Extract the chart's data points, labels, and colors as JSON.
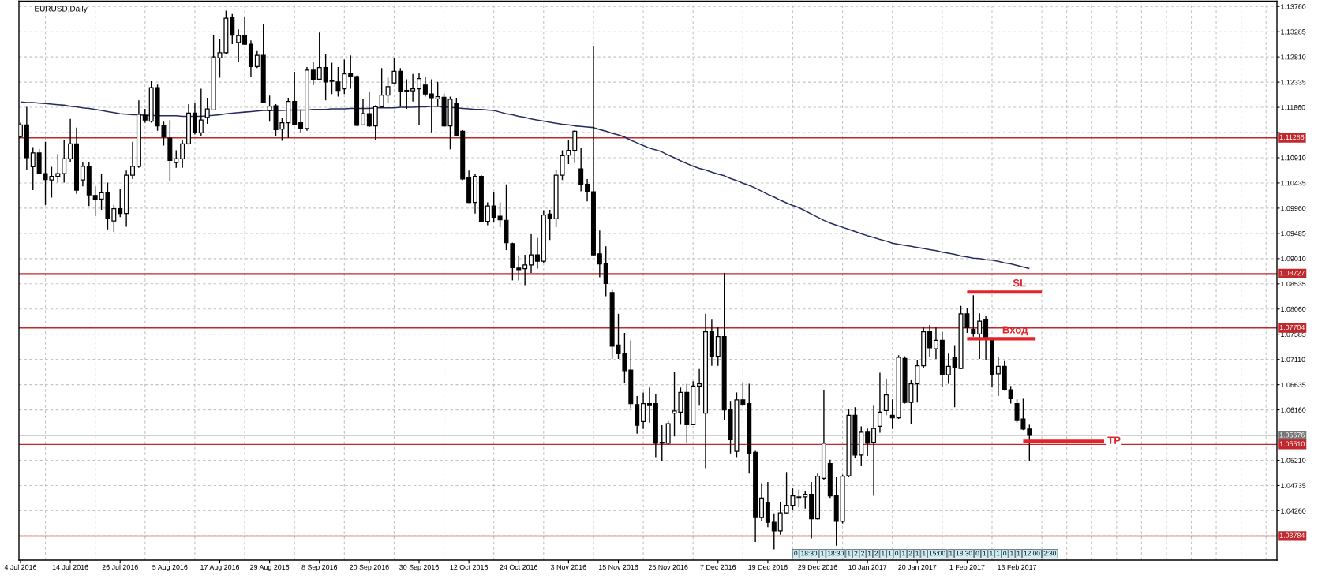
{
  "chart_data": {
    "type": "candlestick",
    "title": "EURUSD,Daily",
    "color": "#000000",
    "categories": [
      "4 Jul 2016",
      null,
      null,
      null,
      null,
      null,
      null,
      null,
      "14 Jul 2016",
      null,
      null,
      null,
      null,
      null,
      null,
      null,
      "26 Jul 2016",
      null,
      null,
      null,
      null,
      null,
      null,
      null,
      "5 Aug 2016",
      null,
      null,
      null,
      null,
      null,
      null,
      null,
      "17 Aug 2016",
      null,
      null,
      null,
      null,
      null,
      null,
      null,
      "29 Aug 2016",
      null,
      null,
      null,
      null,
      null,
      null,
      null,
      "8 Sep 2016",
      null,
      null,
      null,
      null,
      null,
      null,
      null,
      "20 Sep 2016",
      null,
      null,
      null,
      null,
      null,
      null,
      null,
      "30 Sep 2016",
      null,
      null,
      null,
      null,
      null,
      null,
      null,
      "12 Oct 2016",
      null,
      null,
      null,
      null,
      null,
      null,
      null,
      "24 Oct 2016",
      null,
      null,
      null,
      null,
      null,
      null,
      null,
      "3 Nov 2016",
      null,
      null,
      null,
      null,
      null,
      null,
      null,
      "15 Nov 2016",
      null,
      null,
      null,
      null,
      null,
      null,
      null,
      "25 Nov 2016",
      null,
      null,
      null,
      null,
      null,
      null,
      null,
      "7 Dec 2016",
      null,
      null,
      null,
      null,
      null,
      null,
      null,
      "19 Dec 2016",
      null,
      null,
      null,
      null,
      null,
      null,
      null,
      "29 Dec 2016",
      null,
      null,
      null,
      null,
      null,
      null,
      null,
      "10 Jan 2017",
      null,
      null,
      null,
      null,
      null,
      null,
      null,
      "20 Jan 2017",
      null,
      null,
      null,
      null,
      null,
      null,
      null,
      "1 Feb 2017",
      null,
      null,
      null,
      null,
      null,
      null,
      null,
      "13 Feb 2017",
      null,
      null,
      null,
      null,
      null,
      null,
      null,
      null,
      null,
      null,
      null,
      null,
      null,
      null,
      null,
      null,
      null,
      null,
      null,
      null,
      null,
      null,
      null,
      null,
      null,
      null,
      null,
      null,
      null,
      null,
      null,
      null,
      null,
      null,
      null,
      null,
      null,
      null,
      null,
      null,
      null
    ],
    "ohlc": [
      [
        1.1131,
        1.1157,
        1.1128,
        1.1153
      ],
      [
        1.1153,
        1.1187,
        1.1068,
        1.1091
      ],
      [
        1.1074,
        1.1111,
        1.103,
        1.11
      ],
      [
        1.11,
        1.1107,
        1.106,
        1.1061
      ],
      [
        1.1061,
        1.1121,
        1.1002,
        1.105
      ],
      [
        1.1049,
        1.1074,
        1.1016,
        1.1056
      ],
      [
        1.1056,
        1.1098,
        1.1044,
        1.1061
      ],
      [
        1.1061,
        1.1125,
        1.1044,
        1.1089
      ],
      [
        1.1089,
        1.1164,
        1.1082,
        1.1117
      ],
      [
        1.1117,
        1.1148,
        1.1023,
        1.103
      ],
      [
        1.1049,
        1.1082,
        1.1037,
        1.1075
      ],
      [
        1.1075,
        1.1082,
        1.1,
        1.1021
      ],
      [
        1.102,
        1.1037,
        1.0981,
        1.1013
      ],
      [
        1.1013,
        1.106,
        1.0993,
        1.1025
      ],
      [
        1.1025,
        1.1044,
        1.0956,
        1.0976
      ],
      [
        1.0972,
        1.1002,
        1.0951,
        1.0995
      ],
      [
        1.0995,
        1.1032,
        1.0979,
        1.0986
      ],
      [
        1.0986,
        1.1067,
        1.0961,
        1.1058
      ],
      [
        1.1058,
        1.1121,
        1.1051,
        1.1075
      ],
      [
        1.1075,
        1.1199,
        1.1072,
        1.1173
      ],
      [
        1.1171,
        1.1183,
        1.1157,
        1.1162
      ],
      [
        1.116,
        1.1235,
        1.1157,
        1.1223
      ],
      [
        1.1223,
        1.1229,
        1.1142,
        1.1151
      ],
      [
        1.1151,
        1.1159,
        1.1114,
        1.113
      ],
      [
        1.1128,
        1.1162,
        1.1046,
        1.1086
      ],
      [
        1.1082,
        1.1105,
        1.1072,
        1.1089
      ],
      [
        1.1089,
        1.1124,
        1.1072,
        1.1117
      ],
      [
        1.1117,
        1.1192,
        1.1116,
        1.1175
      ],
      [
        1.1175,
        1.1194,
        1.1135,
        1.1138
      ],
      [
        1.1138,
        1.1221,
        1.1132,
        1.1162
      ],
      [
        1.1167,
        1.1204,
        1.1155,
        1.1183
      ],
      [
        1.1181,
        1.1322,
        1.118,
        1.1281
      ],
      [
        1.1279,
        1.1315,
        1.1242,
        1.1289
      ],
      [
        1.1289,
        1.1368,
        1.1286,
        1.1354
      ],
      [
        1.1355,
        1.1362,
        1.1305,
        1.1322
      ],
      [
        1.1308,
        1.1333,
        1.1272,
        1.1321
      ],
      [
        1.1321,
        1.1357,
        1.1304,
        1.1305
      ],
      [
        1.1305,
        1.1312,
        1.1244,
        1.1263
      ],
      [
        1.1263,
        1.1292,
        1.126,
        1.1284
      ],
      [
        1.1284,
        1.1342,
        1.1194,
        1.1195
      ],
      [
        1.118,
        1.1208,
        1.1159,
        1.1188
      ],
      [
        1.1189,
        1.1192,
        1.1131,
        1.1144
      ],
      [
        1.1145,
        1.1166,
        1.1123,
        1.1157
      ],
      [
        1.1157,
        1.1204,
        1.1128,
        1.1197
      ],
      [
        1.1197,
        1.1253,
        1.1152,
        1.1154
      ],
      [
        1.1157,
        1.1181,
        1.1139,
        1.1146
      ],
      [
        1.1146,
        1.1262,
        1.1142,
        1.1256
      ],
      [
        1.1256,
        1.1272,
        1.1228,
        1.1239
      ],
      [
        1.1239,
        1.1327,
        1.1237,
        1.1261
      ],
      [
        1.1261,
        1.1286,
        1.1199,
        1.1234
      ],
      [
        1.1237,
        1.127,
        1.1211,
        1.1235
      ],
      [
        1.1234,
        1.1262,
        1.1206,
        1.1218
      ],
      [
        1.1221,
        1.1276,
        1.1211,
        1.1249
      ],
      [
        1.1249,
        1.1284,
        1.1221,
        1.1244
      ],
      [
        1.1244,
        1.1246,
        1.1151,
        1.1152
      ],
      [
        1.1153,
        1.1201,
        1.1152,
        1.1174
      ],
      [
        1.1174,
        1.1215,
        1.1149,
        1.1151
      ],
      [
        1.1151,
        1.119,
        1.1124,
        1.1187
      ],
      [
        1.1187,
        1.126,
        1.1185,
        1.1209
      ],
      [
        1.1209,
        1.1242,
        1.1194,
        1.1225
      ],
      [
        1.1232,
        1.1279,
        1.123,
        1.1254
      ],
      [
        1.1254,
        1.126,
        1.1187,
        1.1216
      ],
      [
        1.1218,
        1.1239,
        1.1183,
        1.1216
      ],
      [
        1.1217,
        1.1249,
        1.1197,
        1.1221
      ],
      [
        1.1221,
        1.1251,
        1.1153,
        1.124
      ],
      [
        1.1228,
        1.1244,
        1.1206,
        1.1211
      ],
      [
        1.1211,
        1.1239,
        1.1139,
        1.1204
      ],
      [
        1.1202,
        1.1234,
        1.1187,
        1.1206
      ],
      [
        1.1205,
        1.1212,
        1.1149,
        1.1151
      ],
      [
        1.1151,
        1.1206,
        1.1107,
        1.1201
      ],
      [
        1.1194,
        1.1204,
        1.1131,
        1.1132
      ],
      [
        1.1141,
        1.1143,
        1.1049,
        1.1051
      ],
      [
        1.1054,
        1.1067,
        1.1006,
        1.1007
      ],
      [
        1.1007,
        1.106,
        1.0986,
        1.1056
      ],
      [
        1.1056,
        1.1058,
        1.0969,
        1.0971
      ],
      [
        1.0971,
        1.1007,
        1.0964,
        1.1
      ],
      [
        1.1,
        1.1027,
        1.0969,
        1.0979
      ],
      [
        1.0981,
        1.1007,
        1.096,
        1.0974
      ],
      [
        1.0973,
        1.1041,
        1.0917,
        1.0931
      ],
      [
        1.0929,
        1.0931,
        1.086,
        1.0884
      ],
      [
        1.0883,
        1.0907,
        1.086,
        1.088
      ],
      [
        1.0882,
        1.0908,
        1.0851,
        1.0889
      ],
      [
        1.0889,
        1.0947,
        1.0874,
        1.0908
      ],
      [
        1.0908,
        1.094,
        1.0882,
        1.0896
      ],
      [
        1.0896,
        1.0992,
        1.0893,
        1.0983
      ],
      [
        1.0985,
        1.0993,
        1.0936,
        1.0976
      ],
      [
        1.0976,
        1.1068,
        1.096,
        1.1058
      ],
      [
        1.1058,
        1.1105,
        1.1049,
        1.1095
      ],
      [
        1.1096,
        1.1124,
        1.1079,
        1.1105
      ],
      [
        1.1105,
        1.1143,
        1.1081,
        1.1141
      ],
      [
        1.107,
        1.111,
        1.1028,
        1.1041
      ],
      [
        1.1041,
        1.1051,
        1.1009,
        1.1027
      ],
      [
        1.1027,
        1.1302,
        1.0907,
        1.0908
      ],
      [
        1.091,
        1.0954,
        1.0866,
        1.0891
      ],
      [
        1.0891,
        1.0924,
        1.083,
        1.0854
      ],
      [
        1.0837,
        1.0842,
        1.0712,
        1.0736
      ],
      [
        1.0738,
        1.0797,
        1.0712,
        1.0722
      ],
      [
        1.0722,
        1.0761,
        1.0666,
        1.069
      ],
      [
        1.0691,
        1.0747,
        1.0619,
        1.0628
      ],
      [
        1.0626,
        1.0642,
        1.0571,
        1.0587
      ],
      [
        1.0594,
        1.0649,
        1.058,
        1.0628
      ],
      [
        1.0628,
        1.0658,
        1.0592,
        1.0624
      ],
      [
        1.0628,
        1.0645,
        1.0527,
        1.0553
      ],
      [
        1.0555,
        1.0587,
        1.052,
        1.0553
      ],
      [
        1.0553,
        1.0595,
        1.055,
        1.059
      ],
      [
        1.061,
        1.0687,
        1.0566,
        1.0614
      ],
      [
        1.0612,
        1.0658,
        1.0588,
        1.0649
      ],
      [
        1.0649,
        1.0665,
        1.0553,
        1.0588
      ],
      [
        1.0588,
        1.067,
        1.0587,
        1.0661
      ],
      [
        1.0661,
        1.0693,
        1.0624,
        1.0665
      ],
      [
        1.061,
        1.0797,
        1.0506,
        1.0763
      ],
      [
        1.0763,
        1.0786,
        1.0699,
        1.0717
      ],
      [
        1.0717,
        1.0771,
        1.0699,
        1.0754
      ],
      [
        1.0754,
        1.0874,
        1.0596,
        1.0616
      ],
      [
        1.0616,
        1.0633,
        1.0534,
        1.056
      ],
      [
        1.0538,
        1.0649,
        1.0527,
        1.0635
      ],
      [
        1.0635,
        1.0668,
        1.0623,
        1.0626
      ],
      [
        1.0628,
        1.0665,
        1.0496,
        1.0534
      ],
      [
        1.0536,
        1.0539,
        1.0367,
        1.0413
      ],
      [
        1.0413,
        1.0478,
        1.0407,
        1.045
      ],
      [
        1.0441,
        1.048,
        1.0395,
        1.0404
      ],
      [
        1.0404,
        1.0421,
        1.0353,
        1.0388
      ],
      [
        1.0388,
        1.0442,
        1.0381,
        1.0422
      ],
      [
        1.0422,
        1.0499,
        1.0421,
        1.0436
      ],
      [
        1.0436,
        1.0468,
        1.0427,
        1.0454
      ],
      [
        1.0452,
        1.0466,
        1.0432,
        1.0451
      ],
      [
        1.0452,
        1.0463,
        1.043,
        1.0457
      ],
      [
        1.0457,
        1.048,
        1.0374,
        1.0411
      ],
      [
        1.0411,
        1.0496,
        1.0409,
        1.0491
      ],
      [
        1.0487,
        1.0654,
        1.0484,
        1.0553
      ],
      [
        1.0515,
        1.0522,
        1.045,
        1.0454
      ],
      [
        1.0454,
        1.0489,
        1.036,
        1.0406
      ],
      [
        1.0406,
        1.0494,
        1.0402,
        1.0491
      ],
      [
        1.0492,
        1.0617,
        1.0489,
        1.0606
      ],
      [
        1.0606,
        1.0621,
        1.0526,
        1.0531
      ],
      [
        1.0531,
        1.0585,
        1.051,
        1.0574
      ],
      [
        1.0574,
        1.0581,
        1.0529,
        1.0553
      ],
      [
        1.0555,
        1.0624,
        1.0454,
        1.0581
      ],
      [
        1.0585,
        1.0686,
        1.0573,
        1.0612
      ],
      [
        1.0615,
        1.0675,
        1.0606,
        1.0644
      ],
      [
        1.0606,
        1.0636,
        1.058,
        1.0601
      ],
      [
        1.0601,
        1.0719,
        1.0599,
        1.0715
      ],
      [
        1.0713,
        1.0717,
        1.0628,
        1.063
      ],
      [
        1.063,
        1.0672,
        1.059,
        1.0665
      ],
      [
        1.0665,
        1.071,
        1.063,
        1.0699
      ],
      [
        1.0699,
        1.0771,
        1.0694,
        1.0763
      ],
      [
        1.0763,
        1.0776,
        1.0715,
        1.0733
      ],
      [
        1.0731,
        1.0771,
        1.0712,
        1.0747
      ],
      [
        1.0747,
        1.0763,
        1.0659,
        1.0682
      ],
      [
        1.0682,
        1.0722,
        1.0665,
        1.0698
      ],
      [
        1.0715,
        1.0738,
        1.0621,
        1.0696
      ],
      [
        1.0694,
        1.0812,
        1.0693,
        1.0797
      ],
      [
        1.0797,
        1.0807,
        1.0761,
        1.0771
      ],
      [
        1.0768,
        1.0832,
        1.0754,
        1.0759
      ],
      [
        1.0759,
        1.0798,
        1.0712,
        1.0783
      ],
      [
        1.0786,
        1.0793,
        1.071,
        1.0752
      ],
      [
        1.0747,
        1.0749,
        1.0658,
        1.0682
      ],
      [
        1.0684,
        1.0715,
        1.0642,
        1.0698
      ],
      [
        1.0698,
        1.0708,
        1.0652,
        1.0654
      ],
      [
        1.0654,
        1.0661,
        1.0628,
        1.0637
      ],
      [
        1.0628,
        1.0636,
        1.0592,
        1.0596
      ],
      [
        1.0599,
        1.0637,
        1.0578,
        1.058
      ],
      [
        1.058,
        1.0588,
        1.052,
        1.0568
      ],
      null,
      null,
      null,
      null,
      null,
      null,
      null,
      null,
      null,
      null,
      null,
      null,
      null,
      null,
      null,
      null,
      null,
      null,
      null,
      null,
      null,
      null,
      null,
      null,
      null,
      null,
      null,
      null,
      null,
      null,
      null,
      null,
      null,
      null,
      null,
      null,
      null,
      null,
      null
    ],
    "series": [
      {
        "type": "line",
        "color": "#262b5e",
        "values": [
          1.1196,
          1.1195,
          1.1195,
          1.1194,
          1.1193,
          1.1192,
          1.1191,
          1.119,
          1.1188,
          1.1187,
          1.1185,
          1.1184,
          1.1182,
          1.118,
          1.1178,
          1.1176,
          1.1174,
          1.1173,
          1.1172,
          1.1172,
          1.1171,
          1.1171,
          1.117,
          1.117,
          1.117,
          1.117,
          1.1169,
          1.1169,
          1.1169,
          1.1169,
          1.117,
          1.1171,
          1.1172,
          1.1174,
          1.1175,
          1.1176,
          1.1177,
          1.1178,
          1.1179,
          1.118,
          1.118,
          1.118,
          1.118,
          1.1181,
          1.1181,
          1.1181,
          1.1181,
          1.1182,
          1.1182,
          1.1182,
          1.1183,
          1.1183,
          1.1183,
          1.1184,
          1.1184,
          1.1184,
          1.1184,
          1.1185,
          1.1185,
          1.1185,
          1.1185,
          1.1186,
          1.1186,
          1.1186,
          1.1187,
          1.1187,
          1.1188,
          1.1188,
          1.1187,
          1.1186,
          1.1185,
          1.1184,
          1.1183,
          1.1182,
          1.1182,
          1.1181,
          1.118,
          1.1177,
          1.1174,
          1.1172,
          1.1169,
          1.1167,
          1.1164,
          1.1162,
          1.116,
          1.1158,
          1.1156,
          1.1154,
          1.1153,
          1.1151,
          1.115,
          1.1149,
          1.1148,
          1.1144,
          1.1141,
          1.1137,
          1.1134,
          1.113,
          1.1124,
          1.1119,
          1.1114,
          1.1109,
          1.1106,
          1.1102,
          1.1096,
          1.1091,
          1.1085,
          1.108,
          1.1075,
          1.1071,
          1.1068,
          1.1064,
          1.106,
          1.1057,
          1.1052,
          1.1048,
          1.1043,
          1.1039,
          1.1034,
          1.1028,
          1.1022,
          1.1017,
          1.1011,
          1.1006,
          1.1001,
          1.0997,
          1.0991,
          1.0985,
          1.0979,
          1.0973,
          1.0968,
          1.0964,
          1.096,
          1.0956,
          1.0952,
          1.0948,
          1.0944,
          1.0941,
          1.0937,
          1.0934,
          1.093,
          1.0928,
          1.0926,
          1.0924,
          1.0922,
          1.092,
          1.0918,
          1.0916,
          1.0913,
          1.0911,
          1.0909,
          1.0906,
          1.0904,
          1.0902,
          1.0901,
          1.0899,
          1.0898,
          1.0896,
          1.0893,
          1.0891,
          1.0888,
          1.0885,
          1.0882,
          null,
          null,
          null,
          null,
          null,
          null,
          null,
          null,
          null,
          null,
          null,
          null,
          null,
          null,
          null,
          null,
          null,
          null,
          null,
          null,
          null,
          null,
          null,
          null,
          null,
          null,
          null,
          null,
          null,
          null,
          null,
          null,
          null,
          null,
          null,
          null,
          null,
          null,
          null
        ]
      },
      {
        "type": "line",
        "name": "SL",
        "color": "#e3242b",
        "values": [
          null,
          null,
          null,
          null,
          null,
          null,
          null,
          null,
          null,
          null,
          null,
          null,
          null,
          null,
          null,
          null,
          null,
          null,
          null,
          null,
          null,
          null,
          null,
          null,
          null,
          null,
          null,
          null,
          null,
          null,
          null,
          null,
          null,
          null,
          null,
          null,
          null,
          null,
          null,
          null,
          null,
          null,
          null,
          null,
          null,
          null,
          null,
          null,
          null,
          null,
          null,
          null,
          null,
          null,
          null,
          null,
          null,
          null,
          null,
          null,
          null,
          null,
          null,
          null,
          null,
          null,
          null,
          null,
          null,
          null,
          null,
          null,
          null,
          null,
          null,
          null,
          null,
          null,
          null,
          null,
          null,
          null,
          null,
          null,
          null,
          null,
          null,
          null,
          null,
          null,
          null,
          null,
          null,
          null,
          null,
          null,
          null,
          null,
          null,
          null,
          null,
          null,
          null,
          null,
          null,
          null,
          null,
          null,
          null,
          null,
          null,
          null,
          null,
          null,
          null,
          null,
          null,
          null,
          null,
          null,
          null,
          null,
          null,
          null,
          null,
          null,
          null,
          null,
          null,
          null,
          null,
          null,
          null,
          null,
          null,
          null,
          null,
          null,
          null,
          null,
          null,
          null,
          null,
          null,
          null,
          null,
          null,
          null,
          null,
          null,
          null,
          null,
          1.0838,
          1.0838,
          1.0838,
          1.0838,
          1.0838,
          1.0838,
          1.0838,
          1.0838,
          1.0838,
          1.0838,
          1.0838,
          1.0838,
          1.0838,
          null,
          null,
          null,
          null,
          null,
          null,
          null,
          null,
          null,
          null,
          null,
          null,
          null,
          null,
          null,
          null,
          null,
          null,
          null,
          null,
          null,
          null,
          null,
          null,
          null,
          null,
          null,
          null,
          null,
          null,
          null,
          null,
          null,
          null,
          null,
          null,
          null
        ]
      },
      {
        "type": "line",
        "name": "Вход",
        "color": "#e3242b",
        "values": [
          null,
          null,
          null,
          null,
          null,
          null,
          null,
          null,
          null,
          null,
          null,
          null,
          null,
          null,
          null,
          null,
          null,
          null,
          null,
          null,
          null,
          null,
          null,
          null,
          null,
          null,
          null,
          null,
          null,
          null,
          null,
          null,
          null,
          null,
          null,
          null,
          null,
          null,
          null,
          null,
          null,
          null,
          null,
          null,
          null,
          null,
          null,
          null,
          null,
          null,
          null,
          null,
          null,
          null,
          null,
          null,
          null,
          null,
          null,
          null,
          null,
          null,
          null,
          null,
          null,
          null,
          null,
          null,
          null,
          null,
          null,
          null,
          null,
          null,
          null,
          null,
          null,
          null,
          null,
          null,
          null,
          null,
          null,
          null,
          null,
          null,
          null,
          null,
          null,
          null,
          null,
          null,
          null,
          null,
          null,
          null,
          null,
          null,
          null,
          null,
          null,
          null,
          null,
          null,
          null,
          null,
          null,
          null,
          null,
          null,
          null,
          null,
          null,
          null,
          null,
          null,
          null,
          null,
          null,
          null,
          null,
          null,
          null,
          null,
          null,
          null,
          null,
          null,
          null,
          null,
          null,
          null,
          null,
          null,
          null,
          null,
          null,
          null,
          null,
          null,
          null,
          null,
          null,
          null,
          null,
          null,
          null,
          null,
          null,
          null,
          null,
          null,
          1.075,
          1.075,
          1.075,
          1.075,
          1.075,
          1.075,
          1.075,
          1.075,
          1.075,
          1.075,
          1.075,
          1.075,
          null,
          null,
          null,
          null,
          null,
          null,
          null,
          null,
          null,
          null,
          null,
          null,
          null,
          null,
          null,
          null,
          null,
          null,
          null,
          null,
          null,
          null,
          null,
          null,
          null,
          null,
          null,
          null,
          null,
          null,
          null,
          null,
          null,
          null,
          null,
          null,
          null,
          null
        ]
      },
      {
        "type": "line",
        "name": "TP",
        "color": "#e3242b",
        "values": [
          null,
          null,
          null,
          null,
          null,
          null,
          null,
          null,
          null,
          null,
          null,
          null,
          null,
          null,
          null,
          null,
          null,
          null,
          null,
          null,
          null,
          null,
          null,
          null,
          null,
          null,
          null,
          null,
          null,
          null,
          null,
          null,
          null,
          null,
          null,
          null,
          null,
          null,
          null,
          null,
          null,
          null,
          null,
          null,
          null,
          null,
          null,
          null,
          null,
          null,
          null,
          null,
          null,
          null,
          null,
          null,
          null,
          null,
          null,
          null,
          null,
          null,
          null,
          null,
          null,
          null,
          null,
          null,
          null,
          null,
          null,
          null,
          null,
          null,
          null,
          null,
          null,
          null,
          null,
          null,
          null,
          null,
          null,
          null,
          null,
          null,
          null,
          null,
          null,
          null,
          null,
          null,
          null,
          null,
          null,
          null,
          null,
          null,
          null,
          null,
          null,
          null,
          null,
          null,
          null,
          null,
          null,
          null,
          null,
          null,
          null,
          null,
          null,
          null,
          null,
          null,
          null,
          null,
          null,
          null,
          null,
          null,
          null,
          null,
          null,
          null,
          null,
          null,
          null,
          null,
          null,
          null,
          null,
          null,
          null,
          null,
          null,
          null,
          null,
          null,
          null,
          null,
          null,
          null,
          null,
          null,
          null,
          null,
          null,
          null,
          null,
          null,
          null,
          null,
          null,
          null,
          null,
          null,
          null,
          null,
          null,
          1.0557,
          1.0557,
          1.0557,
          1.0557,
          1.0557,
          1.0557,
          1.0557,
          1.0557,
          1.0557,
          1.0557,
          1.0557,
          1.0557,
          1.0557,
          1.0557,
          null,
          null,
          null,
          null,
          null,
          null,
          null,
          null,
          null,
          null,
          null,
          null,
          null,
          null,
          null,
          null,
          null,
          null,
          null,
          null,
          null,
          null,
          null,
          null,
          null,
          null,
          null
        ]
      }
    ],
    "ylim": [
      1.0333,
      1.1386
    ],
    "yticks": [
      {
        "value": 1.1376,
        "label": "1.13760"
      },
      1.13285,
      {
        "value": 1.1281,
        "label": "1.12810"
      },
      1.12335,
      {
        "value": 1.1186,
        "label": "1.11860"
      },
      {
        "value": 1.11385,
        "label": null
      },
      {
        "value": 1.1091,
        "label": "1.10910"
      },
      1.10435,
      {
        "value": 1.0996,
        "label": "1.09960"
      },
      1.09485,
      {
        "value": 1.0901,
        "label": "1.09010"
      },
      1.08535,
      {
        "value": 1.0806,
        "label": "1.08060"
      },
      1.07585,
      {
        "value": 1.0711,
        "label": "1.07110"
      },
      1.06635,
      {
        "value": 1.0616,
        "label": "1.06160"
      },
      {
        "value": 1.05685,
        "label": null
      },
      {
        "value": 1.0521,
        "label": "1.05210"
      },
      1.04735,
      {
        "value": 1.0426,
        "label": "1.04260"
      },
      {
        "value": 1.03785,
        "label": null
      }
    ],
    "grid": true,
    "ref_lines": [
      {
        "axis": "y",
        "value": 1.11286,
        "label": "1.11286",
        "color": "#c0282d"
      },
      {
        "axis": "y",
        "value": 1.08727,
        "label": "1.08727",
        "color": "#c0282d"
      },
      {
        "axis": "y",
        "value": 1.07704,
        "label": "1.07704",
        "color": "#c0282d"
      },
      {
        "axis": "y",
        "value": 1.05676,
        "label": "1.05676",
        "color": "#c0c0c0"
      },
      {
        "axis": "y",
        "value": 1.0551,
        "label": "1.05510",
        "color": "#c0282d"
      },
      {
        "axis": "y",
        "value": 1.03784,
        "label": "1.03784",
        "color": "#c0282d"
      }
    ],
    "annotations": [
      "0",
      "18:30",
      "1",
      "18:30",
      "1",
      "2",
      "2",
      "1",
      "2",
      "1",
      "1",
      "0",
      "1",
      "2",
      "1",
      "1",
      "15:00",
      "1",
      "18:30",
      "0",
      "1",
      "1",
      "1",
      "0",
      "1",
      "1",
      "12:00",
      "2:30"
    ]
  }
}
